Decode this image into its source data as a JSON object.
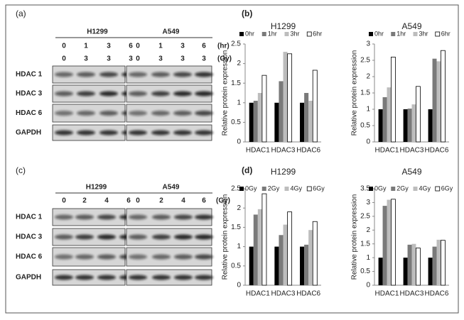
{
  "blots": [
    {
      "panel": "(a)",
      "groups": [
        {
          "name": "H1299",
          "rows": [
            [
              "0",
              "1",
              "3",
              "6"
            ],
            [
              "0",
              "3",
              "3",
              "3"
            ]
          ]
        },
        {
          "name": "A549",
          "rows": [
            [
              "0",
              "1",
              "3",
              "6"
            ],
            [
              "0",
              "3",
              "3",
              "3"
            ]
          ]
        }
      ],
      "units": [
        "(hr)",
        "(Gy)"
      ],
      "proteins": [
        "HDAC 1",
        "HDAC 3",
        "HDAC 6",
        "GAPDH"
      ]
    },
    {
      "panel": "(c)",
      "groups": [
        {
          "name": "H1299",
          "rows": [
            [
              "0",
              "2",
              "4",
              "6"
            ]
          ]
        },
        {
          "name": "A549",
          "rows": [
            [
              "0",
              "2",
              "4",
              "6"
            ]
          ]
        }
      ],
      "units": [
        "(Gy)"
      ],
      "proteins": [
        "HDAC 1",
        "HDAC 3",
        "HDAC 6",
        "GAPDH"
      ]
    }
  ],
  "chart_data": [
    {
      "type": "bar",
      "panel": "(b)",
      "title": "H1299",
      "y_label": "Relative protein expression",
      "categories": [
        "HDAC1",
        "HDAC3",
        "HDAC6"
      ],
      "series": [
        {
          "name": "0hr",
          "color": "#000000",
          "values": [
            1,
            1,
            1
          ]
        },
        {
          "name": "1hr",
          "color": "#7a7a7a",
          "values": [
            1.05,
            1.55,
            1.25
          ]
        },
        {
          "name": "3hr",
          "color": "#bdbdbd",
          "values": [
            1.25,
            2.3,
            1.05
          ]
        },
        {
          "name": "6hr",
          "color": "#ffffff",
          "values": [
            1.7,
            2.25,
            1.83
          ]
        }
      ],
      "ylim": [
        0,
        2.5
      ],
      "yticks": [
        0,
        0.5,
        1,
        1.5,
        2,
        2.5
      ]
    },
    {
      "type": "bar",
      "title": "A549",
      "y_label": "Relative protein expression",
      "categories": [
        "HDAC1",
        "HDAC3",
        "HDAC6"
      ],
      "series": [
        {
          "name": "0hr",
          "color": "#000000",
          "values": [
            1,
            1,
            1
          ]
        },
        {
          "name": "1hr",
          "color": "#7a7a7a",
          "values": [
            1.37,
            1.02,
            2.55
          ]
        },
        {
          "name": "3hr",
          "color": "#bdbdbd",
          "values": [
            1.67,
            1.15,
            2.47
          ]
        },
        {
          "name": "6hr",
          "color": "#ffffff",
          "values": [
            2.6,
            1.7,
            2.8
          ]
        }
      ],
      "ylim": [
        0,
        3
      ],
      "yticks": [
        0,
        0.5,
        1,
        1.5,
        2,
        2.5,
        3
      ]
    },
    {
      "type": "bar",
      "panel": "(d)",
      "title": "H1299",
      "y_label": "Relative protein expression",
      "categories": [
        "HDAC1",
        "HDAC3",
        "HDAC6"
      ],
      "series": [
        {
          "name": "0Gy",
          "color": "#000000",
          "values": [
            1,
            1,
            1
          ]
        },
        {
          "name": "2Gy",
          "color": "#7a7a7a",
          "values": [
            1.83,
            1.3,
            1.05
          ]
        },
        {
          "name": "4Gy",
          "color": "#bdbdbd",
          "values": [
            1.97,
            1.57,
            1.43
          ]
        },
        {
          "name": "6Gy",
          "color": "#ffffff",
          "values": [
            2.37,
            1.9,
            1.65
          ]
        }
      ],
      "ylim": [
        0,
        2.5
      ],
      "yticks": [
        0,
        0.5,
        1,
        1.5,
        2,
        2.5
      ]
    },
    {
      "type": "bar",
      "title": "A549",
      "y_label": "Relative protein expression",
      "categories": [
        "HDAC1",
        "HDAC3",
        "HDAC6"
      ],
      "series": [
        {
          "name": "0Gy",
          "color": "#000000",
          "values": [
            1,
            1,
            1
          ]
        },
        {
          "name": "2Gy",
          "color": "#7a7a7a",
          "values": [
            2.88,
            1.47,
            1.4
          ]
        },
        {
          "name": "4Gy",
          "color": "#bdbdbd",
          "values": [
            3.1,
            1.5,
            1.65
          ]
        },
        {
          "name": "6Gy",
          "color": "#ffffff",
          "values": [
            3.12,
            1.35,
            1.63
          ]
        }
      ],
      "ylim": [
        0,
        3.5
      ],
      "yticks": [
        0,
        0.5,
        1,
        1.5,
        2,
        2.5,
        3,
        3.5
      ]
    }
  ]
}
